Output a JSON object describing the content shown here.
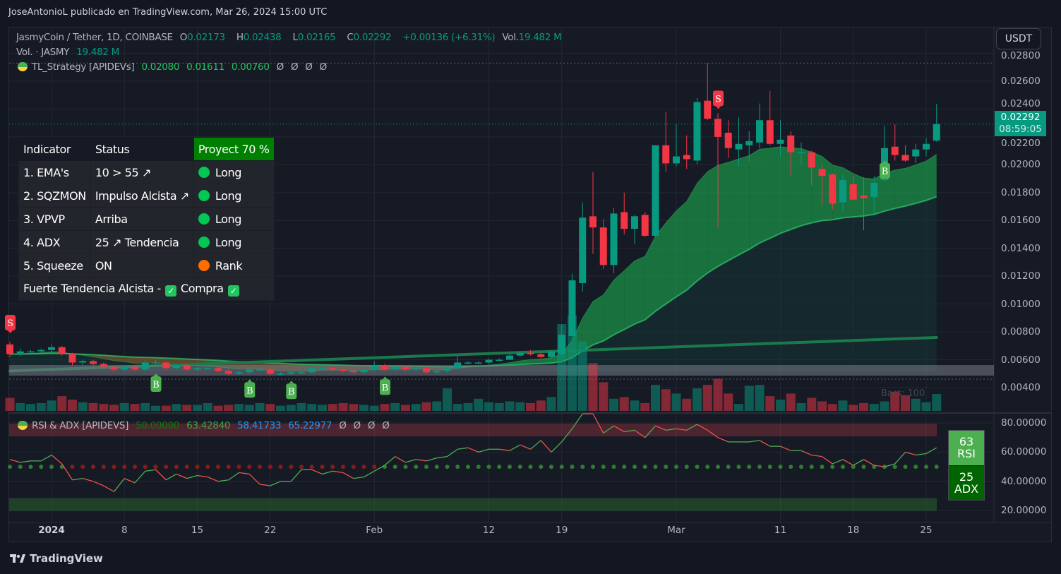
{
  "top_caption": "JoseAntonioL publicado en TradingView.com, Mar 26, 2024 15:00 UTC",
  "legend": {
    "symbol": "JasmyCoin / Tether, 1D, COINBASE",
    "o_label": "O",
    "o": "0.02173",
    "h_label": "H",
    "h": "0.02438",
    "l_label": "L",
    "l": "0.02165",
    "c_label": "C",
    "c": "0.02292",
    "change": "+0.00136 (+6.31%)",
    "vol_label": "Vol.",
    "vol": "19.482 M",
    "vol_row_label": "Vol. · JASMY",
    "vol_row_value": "19.482 M",
    "strategy_name": "TL_Strategy [APIDEVs]",
    "strategy_values": [
      "0.02080",
      "0.01611",
      "0.00760"
    ],
    "strategy_empty": [
      "Ø",
      "Ø",
      "Ø",
      "Ø"
    ],
    "rsi_name": "RSI & ADX [APIDEVS]",
    "rsi_values": [
      "50.00000",
      "63.42840",
      "58.41733",
      "65.22977"
    ],
    "rsi_empty": [
      "Ø",
      "Ø",
      "Ø",
      "Ø"
    ]
  },
  "currency_button": "USDT",
  "price_label": {
    "value": "0.02292",
    "countdown": "08:59:05"
  },
  "price_axis": [
    "0.02800",
    "0.02600",
    "0.02400",
    "0.02200",
    "0.02000",
    "0.01800",
    "0.01600",
    "0.01400",
    "0.01200",
    "0.01000",
    "0.00800",
    "0.00600",
    "0.00400"
  ],
  "rsi_axis": [
    "80.00000",
    "60.00000",
    "40.00000",
    "20.00000"
  ],
  "time_axis": [
    {
      "label": "2024",
      "date": "2024-01-01",
      "bold": true
    },
    {
      "label": "8",
      "date": "2024-01-08"
    },
    {
      "label": "15",
      "date": "2024-01-15"
    },
    {
      "label": "22",
      "date": "2024-01-22"
    },
    {
      "label": "Feb",
      "date": "2024-02-01"
    },
    {
      "label": "12",
      "date": "2024-02-12"
    },
    {
      "label": "19",
      "date": "2024-02-19"
    },
    {
      "label": "Mar",
      "date": "2024-03-01"
    },
    {
      "label": "11",
      "date": "2024-03-11"
    },
    {
      "label": "18",
      "date": "2024-03-18"
    },
    {
      "label": "25",
      "date": "2024-03-25"
    }
  ],
  "table": {
    "headers": [
      "Indicator",
      "Status",
      "Proyect 70 %"
    ],
    "rows": [
      {
        "indicator": "1. EMA's",
        "status": "10 > 55 ↗",
        "signal": "Long",
        "color": "#00c853"
      },
      {
        "indicator": "2. SQZMON",
        "status": "Impulso Alcista ↗",
        "signal": "Long",
        "color": "#00c853"
      },
      {
        "indicator": "3. VPVP",
        "status": "Arriba",
        "signal": "Long",
        "color": "#00c853"
      },
      {
        "indicator": "4. ADX",
        "status": "25 ↗ Tendencia",
        "signal": "Long",
        "color": "#00c853"
      },
      {
        "indicator": "5. Squeeze",
        "status": "ON",
        "signal": "Rank",
        "color": "#ff6d00"
      }
    ],
    "footer_text": "Fuerte Tendencia Alcista -",
    "footer_action": "Compra"
  },
  "rsi_box": {
    "rsi_value": "63",
    "rsi_label": "RSI",
    "adx_value": "25",
    "adx_label": "ADX"
  },
  "bars_text": "Bars: 100",
  "footer_logo": "TradingView",
  "colors": {
    "up": "#089981",
    "down": "#f23645",
    "background": "#161a25",
    "buy": "#4caf50",
    "sell": "#f23645",
    "ema_fill": "#1db954"
  },
  "chart_data": {
    "type": "candlestick",
    "title": "JasmyCoin / Tether, 1D, COINBASE",
    "start_date": "2023-12-28",
    "end_date": "2024-03-26",
    "ylim": [
      0.0035,
      0.0283
    ],
    "ohlc": [
      [
        0.0071,
        0.0073,
        0.0062,
        0.0064
      ],
      [
        0.0064,
        0.0068,
        0.0063,
        0.0066
      ],
      [
        0.0066,
        0.0067,
        0.0065,
        0.0066
      ],
      [
        0.0066,
        0.0068,
        0.0065,
        0.0067
      ],
      [
        0.0067,
        0.0071,
        0.0066,
        0.0069
      ],
      [
        0.0069,
        0.007,
        0.0063,
        0.0064
      ],
      [
        0.0064,
        0.0065,
        0.0056,
        0.0058
      ],
      [
        0.0058,
        0.006,
        0.0056,
        0.0059
      ],
      [
        0.0059,
        0.006,
        0.0055,
        0.0057
      ],
      [
        0.0057,
        0.0058,
        0.0054,
        0.0055
      ],
      [
        0.0055,
        0.0056,
        0.0051,
        0.0053
      ],
      [
        0.0053,
        0.0056,
        0.0052,
        0.0055
      ],
      [
        0.0055,
        0.0056,
        0.0052,
        0.0053
      ],
      [
        0.0053,
        0.006,
        0.0052,
        0.0058
      ],
      [
        0.0058,
        0.006,
        0.0057,
        0.0058
      ],
      [
        0.0058,
        0.0059,
        0.0053,
        0.0054
      ],
      [
        0.0054,
        0.0057,
        0.0053,
        0.0056
      ],
      [
        0.0056,
        0.0057,
        0.0052,
        0.0053
      ],
      [
        0.0053,
        0.0055,
        0.0052,
        0.0054
      ],
      [
        0.0054,
        0.0055,
        0.0053,
        0.0054
      ],
      [
        0.0054,
        0.0055,
        0.0051,
        0.0052
      ],
      [
        0.0052,
        0.0053,
        0.0049,
        0.005
      ],
      [
        0.005,
        0.0052,
        0.0049,
        0.0051
      ],
      [
        0.0051,
        0.0055,
        0.005,
        0.0053
      ],
      [
        0.0053,
        0.0054,
        0.0052,
        0.0053
      ],
      [
        0.0053,
        0.0054,
        0.0049,
        0.005
      ],
      [
        0.005,
        0.0051,
        0.0049,
        0.005
      ],
      [
        0.005,
        0.0052,
        0.0049,
        0.0051
      ],
      [
        0.0051,
        0.0052,
        0.005,
        0.0051
      ],
      [
        0.0051,
        0.0055,
        0.005,
        0.0054
      ],
      [
        0.0054,
        0.0056,
        0.0053,
        0.0054
      ],
      [
        0.0054,
        0.0055,
        0.0052,
        0.0053
      ],
      [
        0.0053,
        0.0054,
        0.0051,
        0.0052
      ],
      [
        0.0052,
        0.0053,
        0.005,
        0.0051
      ],
      [
        0.0051,
        0.0054,
        0.005,
        0.0053
      ],
      [
        0.0053,
        0.0059,
        0.0052,
        0.0056
      ],
      [
        0.0056,
        0.0057,
        0.0052,
        0.0053
      ],
      [
        0.0053,
        0.0056,
        0.0052,
        0.0055
      ],
      [
        0.0055,
        0.0056,
        0.0052,
        0.0053
      ],
      [
        0.0053,
        0.0055,
        0.0052,
        0.0054
      ],
      [
        0.0054,
        0.0055,
        0.005,
        0.0051
      ],
      [
        0.0051,
        0.0053,
        0.005,
        0.0052
      ],
      [
        0.0052,
        0.0055,
        0.0051,
        0.0054
      ],
      [
        0.0054,
        0.0063,
        0.0053,
        0.0058
      ],
      [
        0.0058,
        0.0059,
        0.0057,
        0.0058
      ],
      [
        0.0058,
        0.0059,
        0.0057,
        0.0058
      ],
      [
        0.0058,
        0.0061,
        0.0057,
        0.006
      ],
      [
        0.006,
        0.0061,
        0.0059,
        0.006
      ],
      [
        0.006,
        0.0064,
        0.006,
        0.0063
      ],
      [
        0.0063,
        0.0066,
        0.0062,
        0.0065
      ],
      [
        0.0065,
        0.0067,
        0.0063,
        0.0064
      ],
      [
        0.0064,
        0.0065,
        0.0061,
        0.0062
      ],
      [
        0.0062,
        0.0067,
        0.0061,
        0.0066
      ],
      [
        0.0064,
        0.0085,
        0.0063,
        0.0078
      ],
      [
        0.0077,
        0.0122,
        0.0075,
        0.0117
      ],
      [
        0.0115,
        0.0173,
        0.0109,
        0.0162
      ],
      [
        0.0163,
        0.0195,
        0.0136,
        0.0155
      ],
      [
        0.0155,
        0.0161,
        0.0125,
        0.0128
      ],
      [
        0.0128,
        0.0169,
        0.0122,
        0.0165
      ],
      [
        0.0166,
        0.018,
        0.015,
        0.0154
      ],
      [
        0.0154,
        0.0164,
        0.0143,
        0.0163
      ],
      [
        0.0164,
        0.0166,
        0.0148,
        0.0149
      ],
      [
        0.0149,
        0.0214,
        0.0148,
        0.0214
      ],
      [
        0.0214,
        0.0238,
        0.0195,
        0.0201
      ],
      [
        0.0201,
        0.0229,
        0.0199,
        0.0206
      ],
      [
        0.0207,
        0.0221,
        0.0197,
        0.0204
      ],
      [
        0.0203,
        0.0248,
        0.02,
        0.0245
      ],
      [
        0.0246,
        0.0273,
        0.0232,
        0.0233
      ],
      [
        0.0233,
        0.0237,
        0.0155,
        0.022
      ],
      [
        0.0223,
        0.0232,
        0.0205,
        0.0212
      ],
      [
        0.0211,
        0.0234,
        0.0199,
        0.0215
      ],
      [
        0.0214,
        0.0224,
        0.0202,
        0.0217
      ],
      [
        0.0216,
        0.0244,
        0.0212,
        0.0232
      ],
      [
        0.0232,
        0.0253,
        0.0214,
        0.0215
      ],
      [
        0.0215,
        0.0232,
        0.0206,
        0.0218
      ],
      [
        0.0221,
        0.0224,
        0.0192,
        0.0209
      ],
      [
        0.0209,
        0.0216,
        0.02,
        0.0209
      ],
      [
        0.0209,
        0.021,
        0.0185,
        0.0198
      ],
      [
        0.0197,
        0.02,
        0.0171,
        0.0192
      ],
      [
        0.0193,
        0.0194,
        0.0168,
        0.0172
      ],
      [
        0.0173,
        0.0193,
        0.0167,
        0.0189
      ],
      [
        0.0186,
        0.0192,
        0.0174,
        0.0175
      ],
      [
        0.0178,
        0.0191,
        0.0153,
        0.0176
      ],
      [
        0.0177,
        0.0192,
        0.0164,
        0.0187
      ],
      [
        0.0189,
        0.0228,
        0.0188,
        0.0212
      ],
      [
        0.0213,
        0.0229,
        0.0203,
        0.0207
      ],
      [
        0.0207,
        0.0214,
        0.0202,
        0.0203
      ],
      [
        0.0206,
        0.0215,
        0.0201,
        0.0211
      ],
      [
        0.0211,
        0.0219,
        0.0206,
        0.0215
      ],
      [
        0.02173,
        0.02438,
        0.02165,
        0.02292
      ]
    ],
    "volume_m": [
      15,
      9,
      8,
      9,
      12,
      17,
      13,
      10,
      9,
      8,
      7,
      9,
      8,
      9,
      6,
      6,
      8,
      7,
      7,
      9,
      6,
      7,
      8,
      7,
      9,
      8,
      6,
      7,
      9,
      8,
      7,
      8,
      9,
      8,
      7,
      6,
      8,
      9,
      7,
      8,
      10,
      11,
      26,
      8,
      9,
      14,
      10,
      9,
      11,
      10,
      9,
      12,
      16,
      100,
      110,
      80,
      55,
      33,
      14,
      16,
      12,
      9,
      30,
      25,
      20,
      14,
      26,
      30,
      37,
      20,
      8,
      29,
      30,
      17,
      13,
      20,
      9,
      15,
      11,
      8,
      12,
      7,
      9,
      8,
      11,
      22,
      18,
      14,
      10,
      19.482
    ],
    "rsi": [
      55,
      53,
      54,
      54,
      58,
      52,
      41,
      42,
      40,
      37,
      33,
      42,
      39,
      47,
      48,
      41,
      45,
      42,
      44,
      43,
      40,
      41,
      46,
      45,
      38,
      37,
      40,
      40,
      48,
      48,
      45,
      47,
      46,
      42,
      43,
      47,
      51,
      57,
      53,
      55,
      54,
      56,
      57,
      62,
      63,
      60,
      62,
      62,
      61,
      65,
      62,
      68,
      60,
      67,
      76,
      90,
      88,
      73,
      78,
      74,
      75,
      70,
      78,
      75,
      76,
      75,
      79,
      75,
      70,
      67,
      67,
      67,
      68,
      64,
      64,
      61,
      61,
      58,
      57,
      52,
      55,
      51,
      55,
      51,
      50,
      52,
      60,
      58,
      59,
      63
    ],
    "rsi_ylim": [
      15,
      85
    ],
    "slow_ema_range": [
      0.0052,
      0.0076
    ],
    "volume_profile_band": [
      0.00486,
      0.00562
    ],
    "signals": [
      {
        "date": "2023-12-28",
        "type": "S"
      },
      {
        "date": "2024-01-11",
        "type": "B"
      },
      {
        "date": "2024-01-20",
        "type": "B"
      },
      {
        "date": "2024-01-24",
        "type": "B"
      },
      {
        "date": "2024-02-02",
        "type": "B"
      },
      {
        "date": "2024-03-05",
        "type": "S"
      },
      {
        "date": "2024-03-21",
        "type": "B"
      }
    ],
    "last_price": 0.02292,
    "period_high": 0.0273,
    "support_line": 0.00461
  }
}
